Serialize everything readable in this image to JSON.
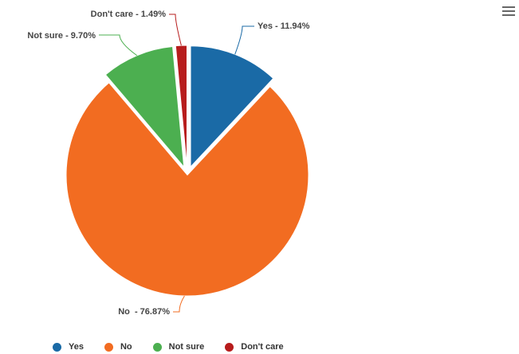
{
  "chart_data": {
    "type": "pie",
    "title": "",
    "legend_position": "bottom-left",
    "slices": [
      {
        "name": "Yes",
        "value": 11.94,
        "label": "Yes - 11.94%",
        "color": "#1a6aa6",
        "sliced": true
      },
      {
        "name": "No",
        "value": 76.87,
        "label": "No  - 76.87%",
        "color": "#f26c21",
        "sliced": false
      },
      {
        "name": "Not sure",
        "value": 9.7,
        "label": "Not sure - 9.70%",
        "color": "#4caf50",
        "sliced": true
      },
      {
        "name": "Don't care",
        "value": 1.49,
        "label": "Don't care - 1.49%",
        "color": "#b71c1c",
        "sliced": true
      }
    ]
  },
  "icons": {
    "menu": "hamburger-menu-icon"
  }
}
